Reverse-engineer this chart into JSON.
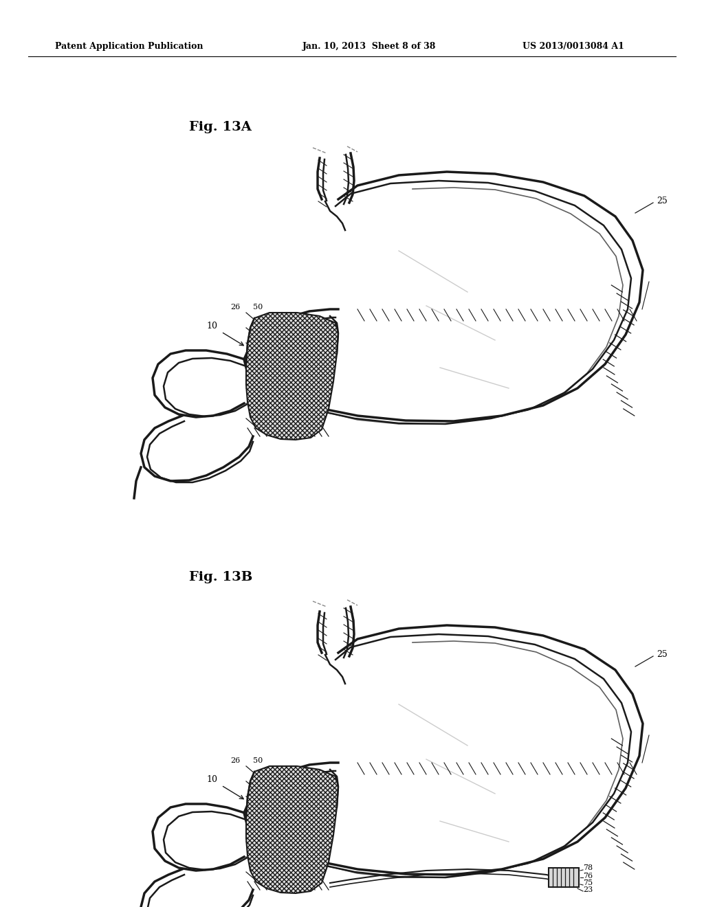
{
  "background_color": "#ffffff",
  "header_text": "Patent Application Publication",
  "header_date": "Jan. 10, 2013  Sheet 8 of 38",
  "header_patent": "US 2013/0013084 A1",
  "fig_a_label": "Fig. 13A",
  "fig_b_label": "Fig. 13B"
}
